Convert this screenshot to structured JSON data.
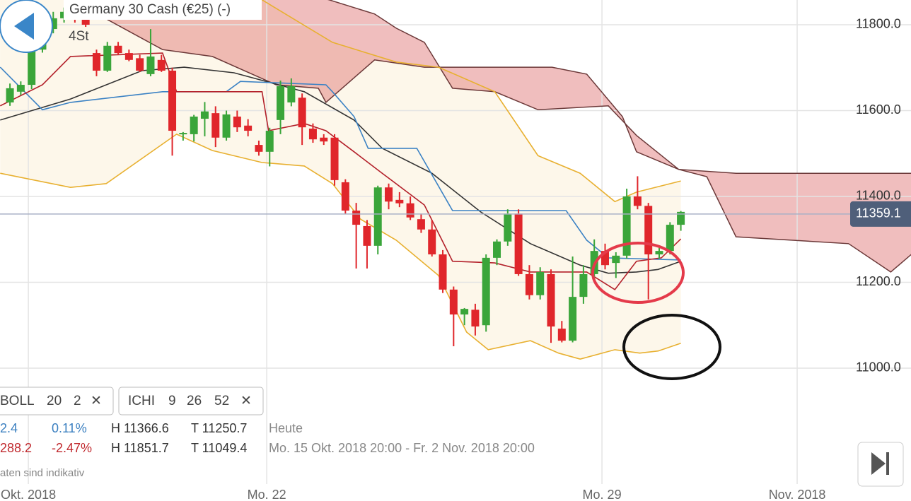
{
  "chart_data": {
    "type": "candlestick",
    "title": "Germany 30 Cash (€25) (-)",
    "timeframe": "4St",
    "up_color": "#3aa53a",
    "down_color": "#e0262b",
    "x": [
      0,
      1,
      2,
      3,
      4,
      5,
      6,
      7,
      8,
      9,
      10,
      11,
      12,
      13,
      14,
      15,
      16,
      17,
      18,
      19,
      20,
      21,
      22,
      23,
      24,
      25,
      26,
      27,
      28,
      29,
      30,
      31,
      32,
      33,
      34,
      35,
      36,
      37,
      38,
      39,
      40,
      41,
      42,
      43,
      44,
      45,
      46,
      47,
      48,
      49,
      50,
      51,
      52,
      53,
      54,
      55,
      56,
      57,
      58,
      59,
      60,
      61,
      62
    ],
    "open": [
      11619,
      11644,
      11660,
      11742,
      11790,
      11815,
      11830,
      11815,
      11734,
      11693,
      11751,
      11734,
      11722,
      11685,
      11718,
      11693,
      11545,
      11545,
      11581,
      11594,
      11537,
      11586,
      11565,
      11520,
      11504,
      11578,
      11619,
      11630,
      11558,
      11537,
      11537,
      11433,
      11367,
      11331,
      11285,
      11421,
      11392,
      11384,
      11347,
      11323,
      11265,
      11183,
      11125,
      11136,
      11100,
      11257,
      11295,
      11360,
      11219,
      11170,
      11219,
      11092,
      11064,
      11166,
      11219,
      11273,
      11245,
      11262,
      11400,
      11378,
      11265,
      11273,
      11334
    ],
    "high": [
      11663,
      11668,
      11760,
      11800,
      11830,
      11840,
      11845,
      11825,
      11742,
      11760,
      11760,
      11742,
      11730,
      11790,
      11730,
      11700,
      11550,
      11590,
      11620,
      11610,
      11600,
      11600,
      11580,
      11530,
      11560,
      11670,
      11675,
      11640,
      11570,
      11545,
      11545,
      11440,
      11385,
      11345,
      11425,
      11430,
      11410,
      11400,
      11360,
      11345,
      11275,
      11190,
      11140,
      11150,
      11265,
      11300,
      11370,
      11370,
      11240,
      11235,
      11230,
      11110,
      11260,
      11240,
      11300,
      11290,
      11270,
      11418,
      11447,
      11385,
      11280,
      11340,
      11366
    ],
    "low": [
      11611,
      11636,
      11650,
      11735,
      11780,
      11805,
      11805,
      11795,
      11680,
      11690,
      11730,
      11715,
      11690,
      11680,
      11690,
      11495,
      11530,
      11528,
      11540,
      11515,
      11530,
      11550,
      11540,
      11495,
      11470,
      11545,
      11610,
      11520,
      11525,
      11520,
      11425,
      11360,
      11232,
      11232,
      11265,
      11370,
      11375,
      11345,
      11315,
      11260,
      11175,
      11051,
      11100,
      11076,
      11085,
      11240,
      11285,
      11215,
      11160,
      11160,
      11059,
      11060,
      11060,
      11150,
      11205,
      11230,
      11210,
      11255,
      11370,
      11160,
      11255,
      11265,
      11320
    ],
    "close": [
      11652,
      11660,
      11742,
      11790,
      11815,
      11830,
      11815,
      11800,
      11693,
      11751,
      11734,
      11718,
      11693,
      11726,
      11693,
      11553,
      11548,
      11586,
      11598,
      11537,
      11591,
      11561,
      11553,
      11504,
      11553,
      11657,
      11657,
      11561,
      11533,
      11528,
      11438,
      11367,
      11334,
      11285,
      11421,
      11388,
      11384,
      11351,
      11323,
      11265,
      11183,
      11125,
      11138,
      11097,
      11257,
      11295,
      11360,
      11219,
      11170,
      11224,
      11097,
      11064,
      11166,
      11219,
      11273,
      11240,
      11262,
      11400,
      11378,
      11265,
      11273,
      11334,
      11364
    ],
    "bollinger": {
      "fill": "#fdf7ea",
      "upper": {
        "color": "#e8b030",
        "x": [
          23.3,
          29.8,
          35.7,
          39.6,
          44.8,
          48.8,
          52.7,
          55.9,
          57.9,
          62.0
        ],
        "values": [
          11858,
          11759,
          11713,
          11701,
          11644,
          11495,
          11454,
          11388,
          11410,
          11436
        ]
      },
      "middle": {
        "color": "#333333",
        "x": [
          -0.9,
          5.6,
          12.2,
          16.1,
          20.7,
          27.2,
          31.8,
          34.4,
          39.0,
          43.5,
          48.1,
          52.7,
          55.3,
          57.9,
          59.9,
          62.0
        ],
        "values": [
          11578,
          11627,
          11693,
          11701,
          11688,
          11644,
          11578,
          11512,
          11454,
          11364,
          11290,
          11240,
          11221,
          11224,
          11230,
          11249
        ]
      },
      "lower": {
        "color": "#e8b030",
        "x": [
          -0.9,
          5.6,
          8.9,
          15.4,
          18.7,
          23.3,
          27.2,
          29.8,
          32.4,
          35.7,
          39.6,
          42.2,
          44.2,
          48.1,
          50.7,
          52.7,
          55.9,
          58.2,
          59.9,
          62.0
        ],
        "values": [
          11454,
          11421,
          11430,
          11545,
          11507,
          11479,
          11471,
          11430,
          11347,
          11298,
          11216,
          11084,
          11043,
          11064,
          11035,
          11021,
          11043,
          11035,
          11040,
          11058
        ]
      }
    },
    "ichimoku": {
      "tenkan": {
        "color": "#b3202a",
        "x": [
          -0.9,
          3.0,
          5.6,
          14.1,
          15.4,
          23.3,
          23.9,
          27.2,
          29.2,
          31.8,
          34.4,
          38.3,
          40.9,
          44.8,
          48.1,
          53.3,
          55.9,
          57.9,
          60.2,
          62.0
        ],
        "values": [
          11611,
          11660,
          11726,
          11734,
          11644,
          11644,
          11553,
          11570,
          11553,
          11504,
          11454,
          11380,
          11249,
          11245,
          11224,
          11224,
          11183,
          11249,
          11257,
          11301
        ]
      },
      "kijun": {
        "color": "#3b82c4",
        "x": [
          -0.9,
          3.0,
          5.6,
          14.1,
          20.0,
          21.3,
          29.2,
          29.8,
          31.8,
          33.1,
          37.6,
          40.9,
          51.4,
          53.3,
          55.3,
          62.0
        ],
        "values": [
          11701,
          11602,
          11619,
          11644,
          11644,
          11668,
          11660,
          11644,
          11586,
          11512,
          11512,
          11367,
          11367,
          11298,
          11257,
          11252
        ]
      },
      "cloud": {
        "fill": "rgba(222,110,110,0.45)",
        "line_color": "#6b3838",
        "span_a": {
          "x": [
            6.9,
            14.1,
            18.7,
            24.6,
            28.5,
            29.2,
            33.7,
            38.3,
            44.8,
            50.1,
            53.3,
            56.6,
            57.9,
            61.8,
            64.4,
            67.1,
            77.5,
            81.4,
            83.3
          ],
          "values": [
            11841,
            11742,
            11726,
            11660,
            11652,
            11619,
            11718,
            11701,
            11701,
            11701,
            11685,
            11586,
            11504,
            11463,
            11446,
            11306,
            11290,
            11224,
            11265
          ]
        },
        "span_b": {
          "x": [
            6.9,
            14.1,
            25.2,
            29.5,
            33.7,
            35.7,
            38.3,
            40.9,
            44.8,
            48.8,
            55.3,
            57.9,
            61.8,
            67.1,
            83.3
          ],
          "values": [
            11882,
            11882,
            11882,
            11858,
            11825,
            11792,
            11759,
            11652,
            11644,
            11602,
            11611,
            11542,
            11463,
            11454,
            11454
          ]
        }
      }
    },
    "last_price": 11359.1,
    "last_price_color": "#4f5f7a",
    "xlim": [
      -0.92,
      83.27
    ],
    "ylim": [
      10730,
      11857.6
    ],
    "xticks": [
      {
        "value": 1.7,
        "label": "Okt. 2018"
      },
      {
        "value": 23.73,
        "label": "Mo. 22"
      },
      {
        "value": 54.71,
        "label": "Mo. 29"
      },
      {
        "value": 72.75,
        "label": "Nov. 2018"
      }
    ],
    "yticks": [
      {
        "value": 11000,
        "label": "11000.0"
      },
      {
        "value": 11200,
        "label": "11200.0"
      },
      {
        "value": 11400,
        "label": "11400.0"
      },
      {
        "value": 11600,
        "label": "11600.0"
      },
      {
        "value": 11800,
        "label": "11800.0"
      }
    ],
    "grid": true
  },
  "panel": {
    "chips": [
      {
        "name": "BOLL",
        "params": [
          "20",
          "2"
        ],
        "close": "✕"
      },
      {
        "name": "ICHI",
        "params": [
          "9",
          "26",
          "52"
        ],
        "close": "✕"
      }
    ],
    "rows": [
      [
        "2.4",
        "0.11%",
        "H 11366.6",
        "T 11250.7",
        "Heute"
      ],
      [
        "288.2",
        "-2.47%",
        "H 11851.7",
        "T 11049.4",
        "Mo. 15 Okt. 2018 20:00 - Fr. 2 Nov. 2018 20:00"
      ]
    ],
    "footnote": "aten sind indikativ"
  }
}
